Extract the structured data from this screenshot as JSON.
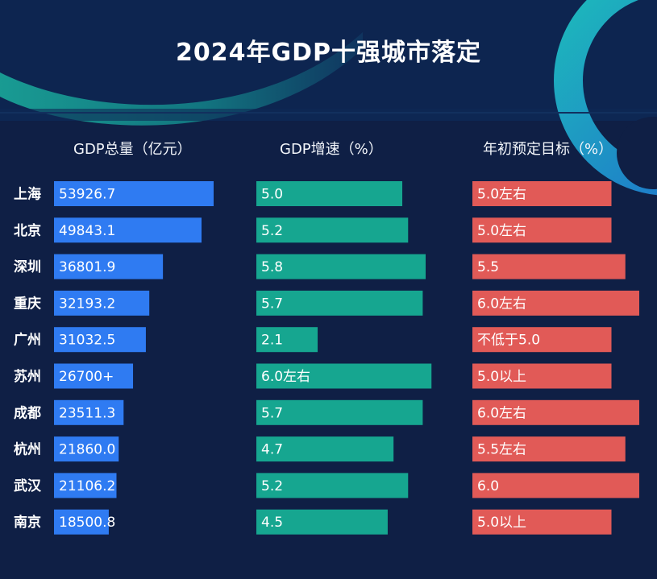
{
  "title": "2024年GDP十强城市落定",
  "chart_data": {
    "type": "bar",
    "title": "2024年GDP十强城市落定",
    "categories": [
      "上海",
      "北京",
      "深圳",
      "重庆",
      "广州",
      "苏州",
      "成都",
      "杭州",
      "武汉",
      "南京"
    ],
    "series": [
      {
        "name": "GDP总量（亿元）",
        "values": [
          53926.7,
          49843.1,
          36801.9,
          32193.2,
          31032.5,
          26700,
          23511.3,
          21860.0,
          21106.2,
          18500.8
        ],
        "labels": [
          "53926.7",
          "49843.1",
          "36801.9",
          "32193.2",
          "31032.5",
          "26700+",
          "23511.3",
          "21860.0",
          "21106.2",
          "18500.8"
        ],
        "color": "#2f7bf2"
      },
      {
        "name": "GDP增速（%）",
        "values": [
          5.0,
          5.2,
          5.8,
          5.7,
          2.1,
          6.0,
          5.7,
          4.7,
          5.2,
          4.5
        ],
        "labels": [
          "5.0",
          "5.2",
          "5.8",
          "5.7",
          "2.1",
          "6.0左右",
          "5.7",
          "4.7",
          "5.2",
          "4.5"
        ],
        "color": "#16a690"
      },
      {
        "name": "年初预定目标（%）",
        "values": [
          5.0,
          5.0,
          5.5,
          6.0,
          5.0,
          5.0,
          6.0,
          5.5,
          6.0,
          5.0
        ],
        "labels": [
          "5.0左右",
          "5.0左右",
          "5.5",
          "6.0左右",
          "不低于5.0",
          "5.0以上",
          "6.0左右",
          "5.5左右",
          "6.0",
          "5.0以上"
        ],
        "color": "#e15a57"
      }
    ]
  }
}
